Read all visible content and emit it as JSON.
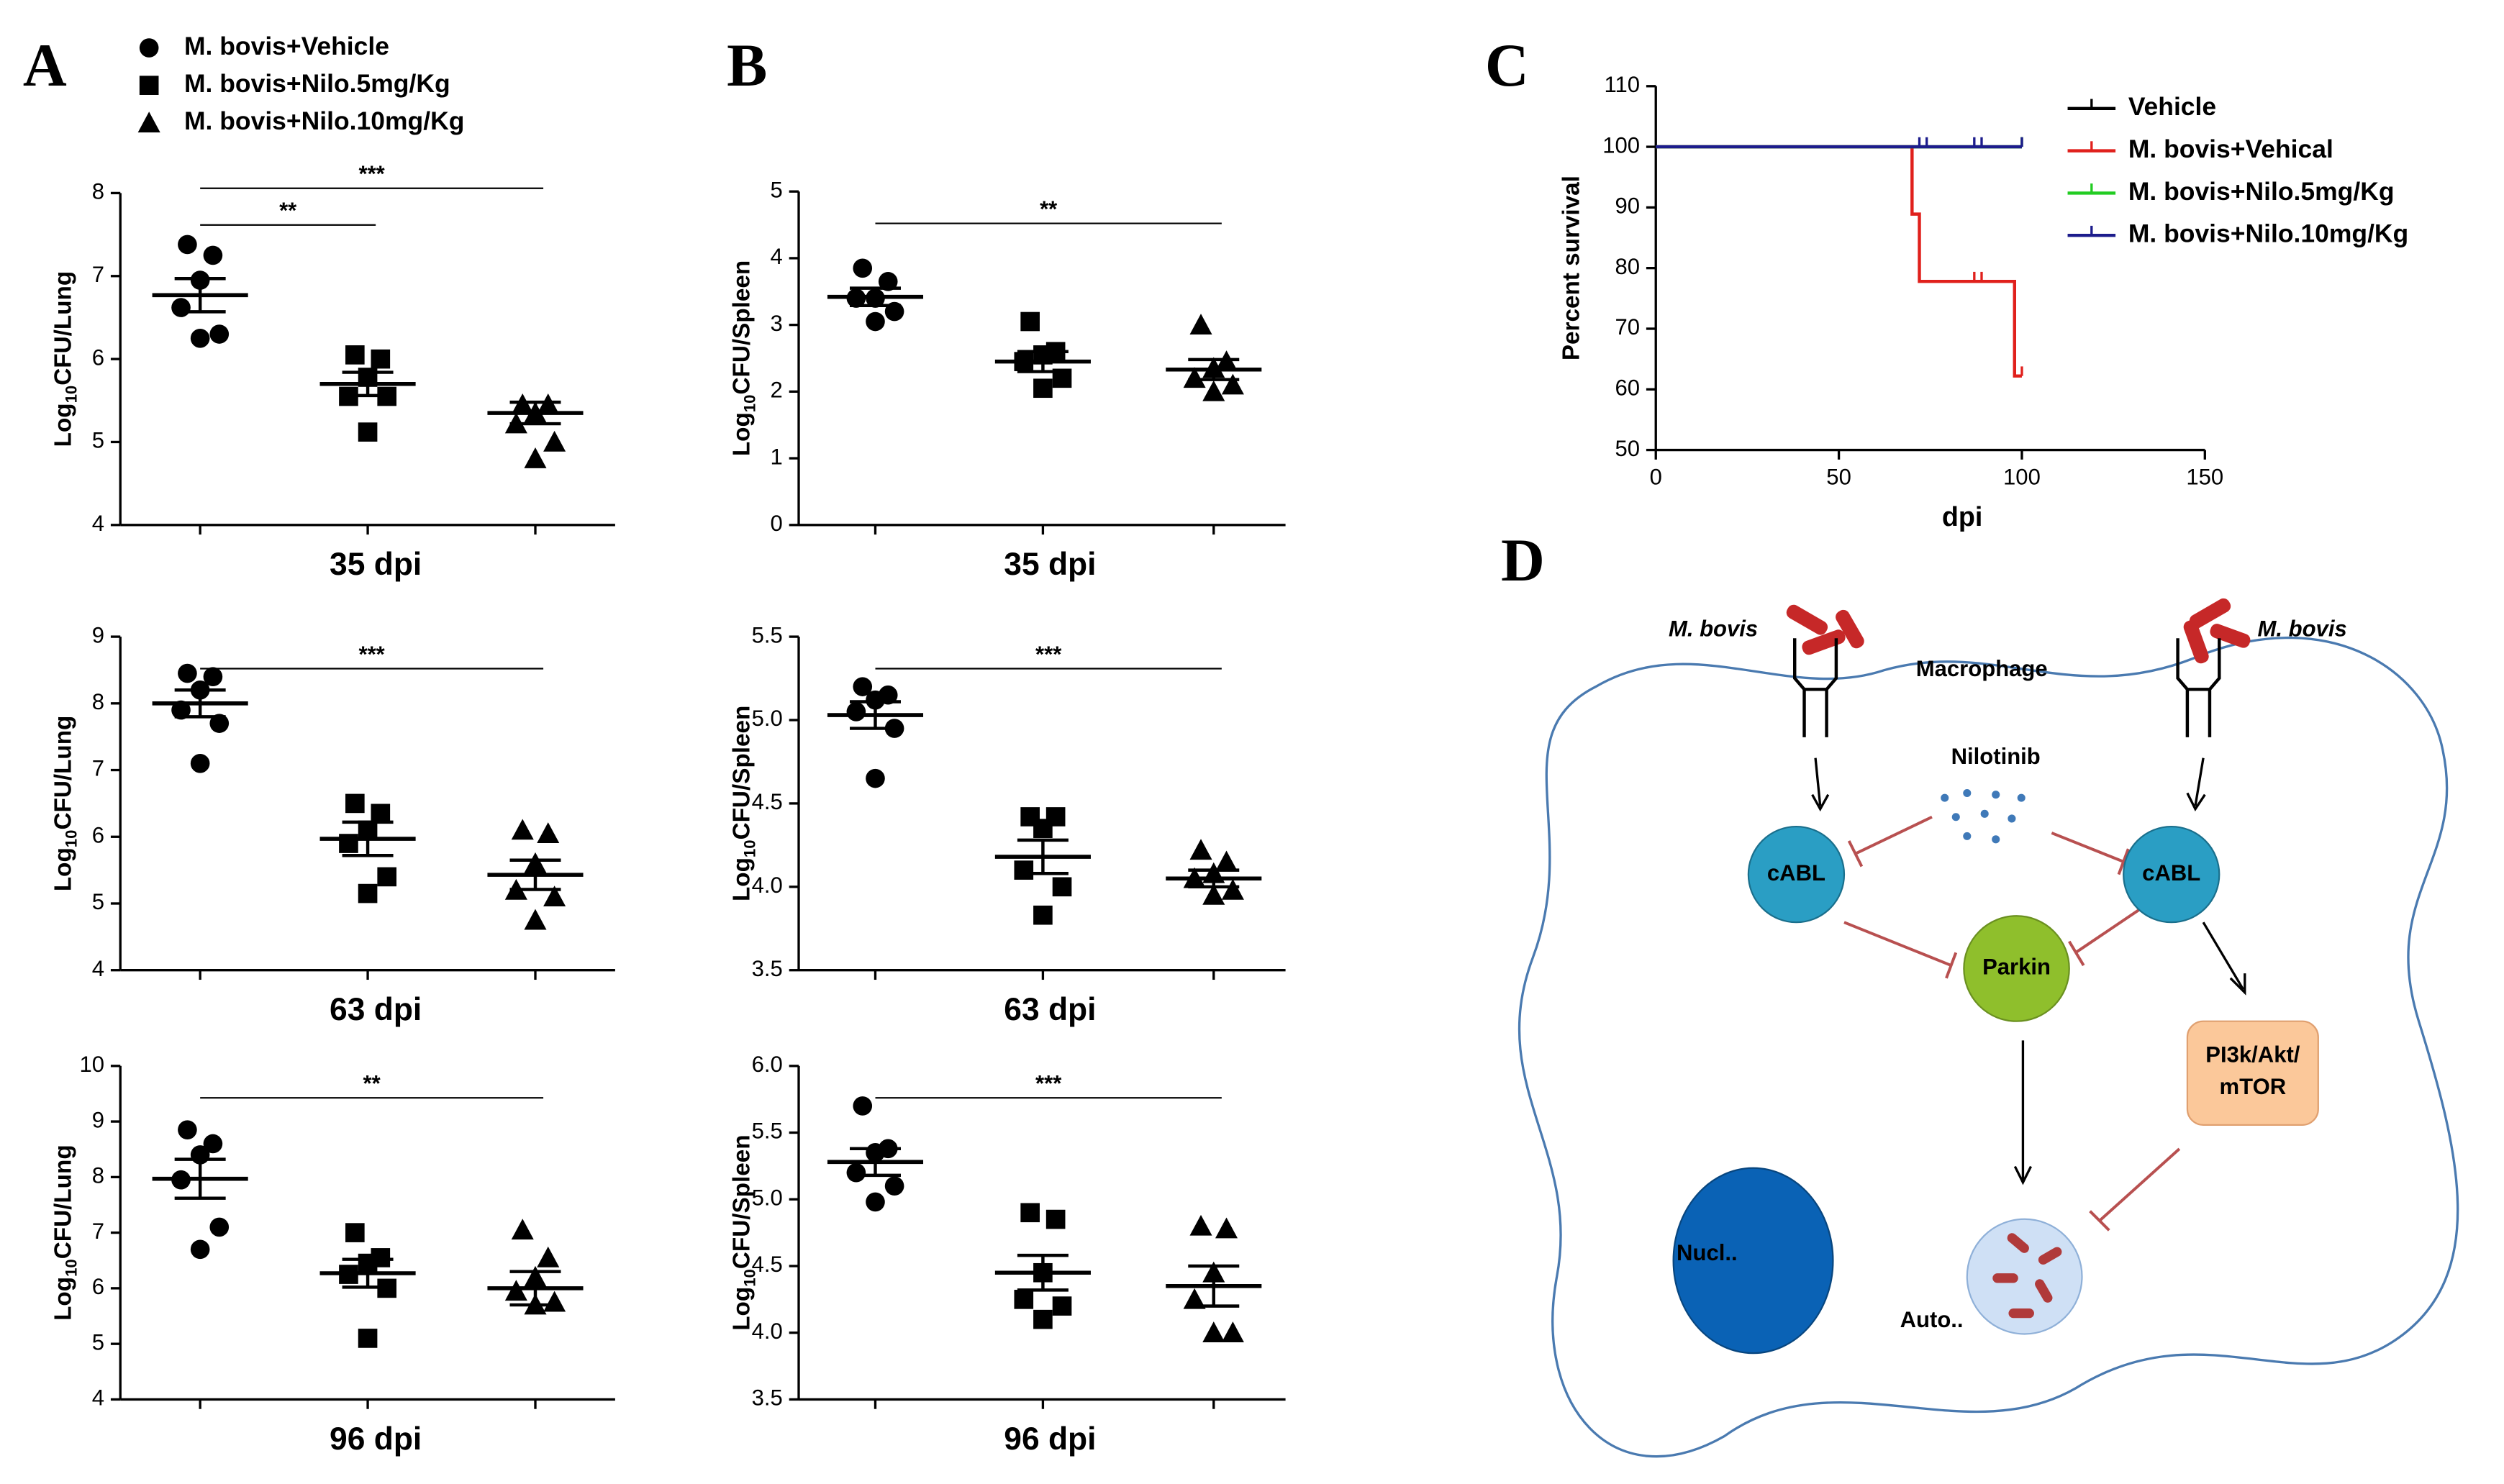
{
  "panel_labels": [
    "A",
    "B",
    "C",
    "D"
  ],
  "chart_data": [
    {
      "type": "strip",
      "xlabel": "35 dpi",
      "ylabel": [
        "Log",
        "10",
        "CFU/Lung"
      ],
      "ylim": [
        4,
        8
      ],
      "yticks": [
        4,
        5,
        6,
        7,
        8
      ],
      "series": [
        {
          "name": "M. bovis+Vehicle",
          "marker": "circle",
          "values": [
            7.38,
            7.25,
            6.95,
            6.62,
            6.3,
            6.25
          ],
          "mean": 6.77,
          "sem": 0.2
        },
        {
          "name": "M. bovis+Nilo.5mg/Kg",
          "marker": "square",
          "values": [
            6.05,
            6.0,
            5.78,
            5.55,
            5.55,
            5.12
          ],
          "mean": 5.7,
          "sem": 0.14
        },
        {
          "name": "M. bovis+Nilo.10mg/Kg",
          "marker": "triangle",
          "values": [
            5.45,
            5.45,
            5.35,
            5.22,
            5.0,
            4.8
          ],
          "mean": 5.35,
          "sem": 0.13
        }
      ],
      "significance": [
        {
          "label": "**",
          "groups": [
            0,
            1
          ]
        },
        {
          "label": "***",
          "groups": [
            0,
            2
          ]
        }
      ]
    },
    {
      "type": "strip",
      "xlabel": "63 dpi",
      "ylabel": [
        "Log",
        "10",
        "CFU/Lung"
      ],
      "ylim": [
        4,
        9
      ],
      "yticks": [
        4,
        5,
        6,
        7,
        8,
        9
      ],
      "series": [
        {
          "marker": "circle",
          "values": [
            8.45,
            8.4,
            8.2,
            7.9,
            7.7,
            7.1
          ],
          "mean": 8.0,
          "sem": 0.2
        },
        {
          "marker": "square",
          "values": [
            6.5,
            6.35,
            6.1,
            5.9,
            5.4,
            5.15
          ],
          "mean": 5.97,
          "sem": 0.25
        },
        {
          "marker": "triangle",
          "values": [
            6.1,
            6.05,
            5.6,
            5.2,
            5.1,
            4.75
          ],
          "mean": 5.43,
          "sem": 0.22
        }
      ],
      "significance": [
        {
          "label": "***",
          "groups": [
            0,
            2
          ]
        }
      ]
    },
    {
      "type": "strip",
      "xlabel": "96 dpi",
      "ylabel": [
        "Log",
        "10",
        "CFU/Lung"
      ],
      "ylim": [
        4,
        10
      ],
      "yticks": [
        4,
        5,
        6,
        7,
        8,
        9,
        10
      ],
      "series": [
        {
          "marker": "circle",
          "values": [
            8.85,
            8.6,
            8.4,
            7.95,
            7.1,
            6.7
          ],
          "mean": 7.97,
          "sem": 0.35
        },
        {
          "marker": "square",
          "values": [
            7.0,
            6.55,
            6.45,
            6.25,
            6.0,
            5.1
          ],
          "mean": 6.27,
          "sem": 0.25
        },
        {
          "marker": "triangle",
          "values": [
            7.05,
            6.55,
            6.2,
            5.95,
            5.75,
            5.7
          ],
          "mean": 6.0,
          "sem": 0.3
        }
      ],
      "significance": [
        {
          "label": "**",
          "groups": [
            0,
            2
          ]
        }
      ]
    },
    {
      "type": "strip",
      "xlabel": "35 dpi",
      "ylabel": [
        "Log",
        "10",
        "CFU/Spleen"
      ],
      "ylim": [
        0,
        5
      ],
      "yticks": [
        0,
        1,
        2,
        3,
        4,
        5
      ],
      "series": [
        {
          "marker": "circle",
          "values": [
            3.85,
            3.65,
            3.4,
            3.4,
            3.2,
            3.05
          ],
          "mean": 3.42,
          "sem": 0.13
        },
        {
          "marker": "square",
          "values": [
            3.05,
            2.6,
            2.55,
            2.45,
            2.2,
            2.05
          ],
          "mean": 2.45,
          "sem": 0.15
        },
        {
          "marker": "triangle",
          "values": [
            3.0,
            2.45,
            2.35,
            2.2,
            2.1,
            2.0
          ],
          "mean": 2.33,
          "sem": 0.15
        }
      ],
      "significance": [
        {
          "label": "**",
          "groups": [
            0,
            2
          ]
        }
      ]
    },
    {
      "type": "strip",
      "xlabel": "63 dpi",
      "ylabel": [
        "Log",
        "10",
        "CFU/Spleen"
      ],
      "ylim": [
        3.5,
        5.5
      ],
      "yticks": [
        3.5,
        {
          "value": 4,
          "label": "4.0"
        },
        4.5,
        {
          "value": 5,
          "label": "5.0"
        },
        5.5
      ],
      "series": [
        {
          "marker": "circle",
          "values": [
            5.2,
            5.15,
            5.12,
            5.05,
            4.95,
            4.65
          ],
          "mean": 5.03,
          "sem": 0.08
        },
        {
          "marker": "square",
          "values": [
            4.42,
            4.42,
            4.35,
            4.1,
            4.0,
            3.83
          ],
          "mean": 4.18,
          "sem": 0.1
        },
        {
          "marker": "triangle",
          "values": [
            4.22,
            4.15,
            4.08,
            4.05,
            3.98,
            3.95
          ],
          "mean": 4.05,
          "sem": 0.05
        }
      ],
      "significance": [
        {
          "label": "***",
          "groups": [
            0,
            2
          ]
        }
      ]
    },
    {
      "type": "strip",
      "xlabel": "96 dpi",
      "ylabel": [
        "Log",
        "10",
        "CFU/Spleen"
      ],
      "ylim": [
        3.5,
        6
      ],
      "yticks": [
        3.5,
        {
          "value": 4,
          "label": "4.0"
        },
        4.5,
        {
          "value": 5,
          "label": "5.0"
        },
        5.5,
        {
          "value": 6,
          "label": "6.0"
        }
      ],
      "series": [
        {
          "marker": "circle",
          "values": [
            5.7,
            5.38,
            5.35,
            5.2,
            5.1,
            4.98
          ],
          "mean": 5.28,
          "sem": 0.1
        },
        {
          "marker": "square",
          "values": [
            4.9,
            4.85,
            4.45,
            4.25,
            4.2,
            4.1
          ],
          "mean": 4.45,
          "sem": 0.13
        },
        {
          "marker": "triangle",
          "values": [
            4.8,
            4.78,
            4.45,
            4.25,
            4.0,
            4.0
          ],
          "mean": 4.35,
          "sem": 0.15
        }
      ],
      "significance": [
        {
          "label": "***",
          "groups": [
            0,
            2
          ]
        }
      ]
    },
    {
      "type": "line",
      "xlabel": "dpi",
      "ylabel": "Percent survival",
      "xlim": [
        0,
        150
      ],
      "xticks": [
        0,
        50,
        100,
        150
      ],
      "ylim": [
        50,
        110
      ],
      "yticks": [
        50,
        60,
        70,
        80,
        90,
        100,
        110
      ],
      "series": [
        {
          "name": "Vehicle",
          "color": "#000000",
          "x": [
            0,
            100
          ],
          "values": [
            100,
            100
          ],
          "censor_x": [
            100
          ],
          "censor_y": [
            100
          ]
        },
        {
          "name": "M. bovis+Vehical",
          "color": "#e0201c",
          "x": [
            0,
            70,
            70,
            72,
            72,
            98,
            98,
            100
          ],
          "values": [
            100,
            100,
            88.9,
            88.9,
            77.8,
            77.8,
            62.2,
            62.2
          ],
          "censor_x": [
            87,
            89,
            100
          ],
          "censor_y": [
            77.8,
            77.8,
            62.2
          ]
        },
        {
          "name": "M. bovis+Nilo.5mg/Kg",
          "color": "#22cc22",
          "x": [
            0,
            100
          ],
          "values": [
            100,
            100
          ],
          "censor_x": [
            100
          ],
          "censor_y": [
            100
          ]
        },
        {
          "name": "M. bovis+Nilo.10mg/Kg",
          "color": "#1c1c8c",
          "x": [
            0,
            100
          ],
          "values": [
            100,
            100
          ],
          "censor_x": [
            72,
            74,
            87,
            89,
            100
          ],
          "censor_y": [
            100,
            100,
            100,
            100,
            100
          ]
        }
      ]
    }
  ],
  "diagram": {
    "nodes": [
      {
        "label": "M. bovis"
      },
      {
        "label": "M. bovis"
      },
      {
        "label": "Macrophage"
      },
      {
        "label": "Nilotinib"
      },
      {
        "label": "cABL"
      },
      {
        "label": "cABL"
      },
      {
        "label": "Parkin"
      },
      {
        "lines": [
          "PI3k/Akt/",
          "mTOR"
        ]
      },
      {
        "label": "Nucl.."
      },
      {
        "label": "Auto.."
      }
    ]
  }
}
